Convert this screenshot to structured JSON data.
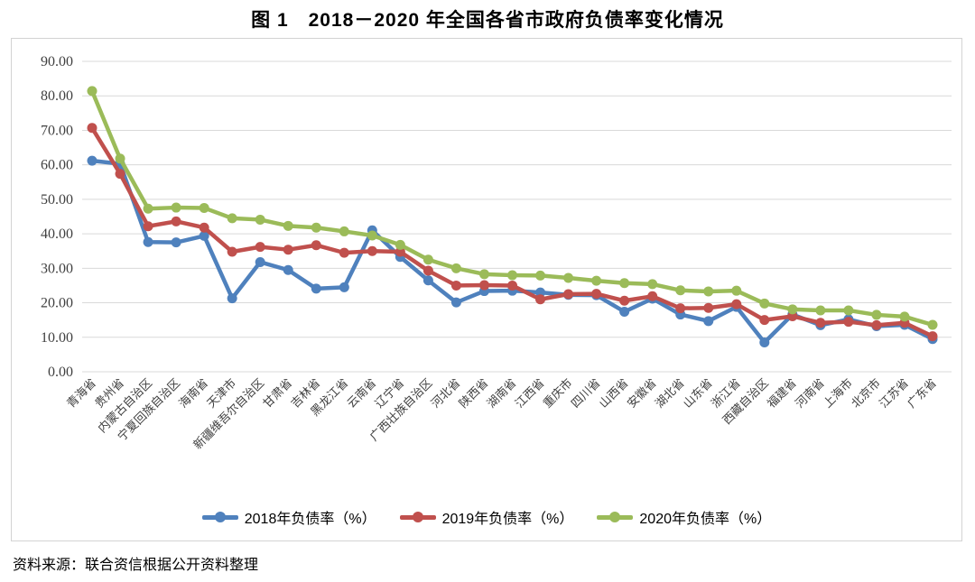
{
  "title": "图 1　2018－2020 年全国各省市政府负债率变化情况",
  "source_note": "资料来源：联合资信根据公开资料整理",
  "chart_data": {
    "type": "line",
    "title": "图 1　2018－2020 年全国各省市政府负债率变化情况",
    "xlabel": "",
    "ylabel": "",
    "ylim": [
      0,
      90
    ],
    "ytick_step": 10,
    "yticks": [
      "90.00",
      "80.00",
      "70.00",
      "60.00",
      "50.00",
      "40.00",
      "30.00",
      "20.00",
      "10.00",
      "0.00"
    ],
    "grid": true,
    "legend_position": "bottom",
    "categories": [
      "青海省",
      "贵州省",
      "内蒙古自治区",
      "宁夏回族自治区",
      "海南省",
      "天津市",
      "新疆维吾尔自治区",
      "甘肃省",
      "吉林省",
      "黑龙江省",
      "云南省",
      "辽宁省",
      "广西壮族自治区",
      "河北省",
      "陕西省",
      "湖南省",
      "江西省",
      "重庆市",
      "四川省",
      "山西省",
      "安徽省",
      "湖北省",
      "山东省",
      "浙江省",
      "西藏自治区",
      "福建省",
      "河南省",
      "上海市",
      "北京市",
      "江苏省",
      "广东省"
    ],
    "series": [
      {
        "name": "2018年负债率（%）",
        "color": "#4F81BD",
        "values": [
          61.2,
          60.3,
          37.6,
          37.5,
          39.4,
          21.3,
          31.8,
          29.5,
          24.1,
          24.5,
          41.0,
          33.3,
          26.5,
          20.1,
          23.4,
          23.5,
          23.0,
          22.3,
          22.2,
          17.4,
          21.2,
          16.6,
          14.7,
          18.8,
          8.5,
          16.6,
          13.5,
          15.2,
          13.2,
          13.6,
          9.5
        ]
      },
      {
        "name": "2019年负债率（%）",
        "color": "#C0504D",
        "values": [
          70.7,
          57.4,
          42.2,
          43.6,
          41.8,
          34.8,
          36.2,
          35.4,
          36.7,
          34.5,
          35.0,
          34.8,
          29.3,
          25.0,
          25.1,
          25.0,
          21.0,
          22.5,
          22.6,
          20.6,
          21.9,
          18.4,
          18.5,
          19.6,
          15.0,
          16.1,
          14.2,
          14.5,
          13.5,
          14.2,
          10.3
        ]
      },
      {
        "name": "2020年负债率（%）",
        "color": "#9BBB59",
        "values": [
          81.4,
          61.8,
          47.3,
          47.6,
          47.5,
          44.5,
          44.1,
          42.3,
          41.8,
          40.7,
          39.5,
          36.8,
          32.5,
          30.0,
          28.3,
          28.0,
          27.9,
          27.2,
          26.4,
          25.7,
          25.4,
          23.6,
          23.3,
          23.5,
          19.8,
          18.1,
          17.8,
          17.8,
          16.5,
          16.0,
          13.6
        ]
      }
    ]
  },
  "colors": {
    "gridline": "#d9d9d9",
    "tick_text": "#3f3f3f",
    "chart_border": "#d3d3d3"
  }
}
